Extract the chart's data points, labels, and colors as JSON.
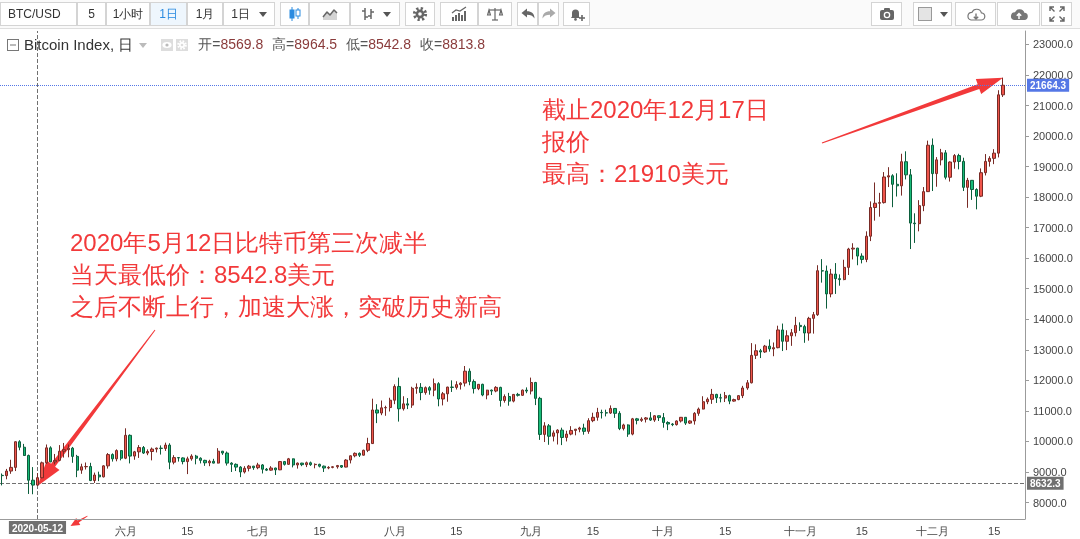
{
  "chart_data": {
    "type": "candlestick",
    "title": "Bitcoin Index, 日",
    "subtitle": "开=8569.8 高=8964.5 低=8542.8 收=8813.8",
    "x": [
      "2020-05-04",
      "2020-05-05",
      "2020-05-06",
      "2020-05-07",
      "2020-05-08",
      "2020-05-09",
      "2020-05-10",
      "2020-05-11",
      "2020-05-12",
      "2020-05-13",
      "2020-05-14",
      "2020-05-15",
      "2020-05-16",
      "2020-05-17",
      "2020-05-18",
      "2020-05-19",
      "2020-05-20",
      "2020-05-21",
      "2020-05-22",
      "2020-05-23",
      "2020-05-24",
      "2020-05-25",
      "2020-05-26",
      "2020-05-27",
      "2020-05-28",
      "2020-05-29",
      "2020-05-30",
      "2020-05-31",
      "2020-06-01",
      "2020-06-02",
      "2020-06-03",
      "2020-06-04",
      "2020-06-05",
      "2020-06-06",
      "2020-06-07",
      "2020-06-08",
      "2020-06-09",
      "2020-06-10",
      "2020-06-11",
      "2020-06-12",
      "2020-06-13",
      "2020-06-14",
      "2020-06-15",
      "2020-06-16",
      "2020-06-17",
      "2020-06-18",
      "2020-06-19",
      "2020-06-20",
      "2020-06-21",
      "2020-06-22",
      "2020-06-23",
      "2020-06-24",
      "2020-06-25",
      "2020-06-26",
      "2020-06-27",
      "2020-06-28",
      "2020-06-29",
      "2020-06-30",
      "2020-07-01",
      "2020-07-02",
      "2020-07-03",
      "2020-07-04",
      "2020-07-05",
      "2020-07-06",
      "2020-07-07",
      "2020-07-08",
      "2020-07-09",
      "2020-07-10",
      "2020-07-11",
      "2020-07-12",
      "2020-07-13",
      "2020-07-14",
      "2020-07-15",
      "2020-07-16",
      "2020-07-17",
      "2020-07-18",
      "2020-07-19",
      "2020-07-20",
      "2020-07-21",
      "2020-07-22",
      "2020-07-23",
      "2020-07-24",
      "2020-07-25",
      "2020-07-26",
      "2020-07-27",
      "2020-07-28",
      "2020-07-29",
      "2020-07-30",
      "2020-07-31",
      "2020-08-01",
      "2020-08-02",
      "2020-08-03",
      "2020-08-04",
      "2020-08-05",
      "2020-08-06",
      "2020-08-07",
      "2020-08-08",
      "2020-08-09",
      "2020-08-10",
      "2020-08-11",
      "2020-08-12",
      "2020-08-13",
      "2020-08-14",
      "2020-08-15",
      "2020-08-16",
      "2020-08-17",
      "2020-08-18",
      "2020-08-19",
      "2020-08-20",
      "2020-08-21",
      "2020-08-22",
      "2020-08-23",
      "2020-08-24",
      "2020-08-25",
      "2020-08-26",
      "2020-08-27",
      "2020-08-28",
      "2020-08-29",
      "2020-08-30",
      "2020-08-31",
      "2020-09-01",
      "2020-09-02",
      "2020-09-03",
      "2020-09-04",
      "2020-09-05",
      "2020-09-06",
      "2020-09-07",
      "2020-09-08",
      "2020-09-09",
      "2020-09-10",
      "2020-09-11",
      "2020-09-12",
      "2020-09-13",
      "2020-09-14",
      "2020-09-15",
      "2020-09-16",
      "2020-09-17",
      "2020-09-18",
      "2020-09-19",
      "2020-09-20",
      "2020-09-21",
      "2020-09-22",
      "2020-09-23",
      "2020-09-24",
      "2020-09-25",
      "2020-09-26",
      "2020-09-27",
      "2020-09-28",
      "2020-09-29",
      "2020-09-30",
      "2020-10-01",
      "2020-10-02",
      "2020-10-03",
      "2020-10-04",
      "2020-10-05",
      "2020-10-06",
      "2020-10-07",
      "2020-10-08",
      "2020-10-09",
      "2020-10-10",
      "2020-10-11",
      "2020-10-12",
      "2020-10-13",
      "2020-10-14",
      "2020-10-15",
      "2020-10-16",
      "2020-10-17",
      "2020-10-18",
      "2020-10-19",
      "2020-10-20",
      "2020-10-21",
      "2020-10-22",
      "2020-10-23",
      "2020-10-24",
      "2020-10-25",
      "2020-10-26",
      "2020-10-27",
      "2020-10-28",
      "2020-10-29",
      "2020-10-30",
      "2020-10-31",
      "2020-11-01",
      "2020-11-02",
      "2020-11-03",
      "2020-11-04",
      "2020-11-05",
      "2020-11-06",
      "2020-11-07",
      "2020-11-08",
      "2020-11-09",
      "2020-11-10",
      "2020-11-11",
      "2020-11-12",
      "2020-11-13",
      "2020-11-14",
      "2020-11-15",
      "2020-11-16",
      "2020-11-17",
      "2020-11-18",
      "2020-11-19",
      "2020-11-20",
      "2020-11-21",
      "2020-11-22",
      "2020-11-23",
      "2020-11-24",
      "2020-11-25",
      "2020-11-26",
      "2020-11-27",
      "2020-11-28",
      "2020-11-29",
      "2020-11-30",
      "2020-12-01",
      "2020-12-02",
      "2020-12-03",
      "2020-12-04",
      "2020-12-05",
      "2020-12-06",
      "2020-12-07",
      "2020-12-08",
      "2020-12-09",
      "2020-12-10",
      "2020-12-11",
      "2020-12-12",
      "2020-12-13",
      "2020-12-14",
      "2020-12-15",
      "2020-12-16",
      "2020-12-17"
    ],
    "ohlc": [
      [
        8890,
        8950,
        8560,
        8880
      ],
      [
        8880,
        9100,
        8760,
        9030
      ],
      [
        9030,
        9400,
        8940,
        9150
      ],
      [
        9150,
        10000,
        9030,
        9990
      ],
      [
        9990,
        10040,
        9710,
        9810
      ],
      [
        9810,
        9920,
        9530,
        9540
      ],
      [
        9540,
        9570,
        8280,
        8730
      ],
      [
        8730,
        9160,
        8270,
        8570
      ],
      [
        8569.8,
        8964.5,
        8542.8,
        8813.8
      ],
      [
        8810,
        9340,
        8790,
        9300
      ],
      [
        9300,
        9900,
        9260,
        9790
      ],
      [
        9790,
        9840,
        9320,
        9330
      ],
      [
        9330,
        9590,
        9250,
        9380
      ],
      [
        9380,
        9880,
        9350,
        9680
      ],
      [
        9680,
        9950,
        9470,
        9730
      ],
      [
        9730,
        9900,
        9480,
        9780
      ],
      [
        9780,
        9820,
        9300,
        9510
      ],
      [
        9510,
        9560,
        8830,
        9060
      ],
      [
        9060,
        9270,
        8940,
        9170
      ],
      [
        9170,
        9310,
        9080,
        9180
      ],
      [
        9180,
        9300,
        8700,
        8720
      ],
      [
        8720,
        8980,
        8640,
        8900
      ],
      [
        8900,
        9010,
        8700,
        8840
      ],
      [
        8840,
        9220,
        8820,
        9200
      ],
      [
        9200,
        9620,
        9110,
        9570
      ],
      [
        9570,
        9610,
        9340,
        9430
      ],
      [
        9430,
        9740,
        9350,
        9700
      ],
      [
        9700,
        9710,
        9380,
        9450
      ],
      [
        9450,
        10430,
        9420,
        10200
      ],
      [
        10200,
        10230,
        9280,
        9520
      ],
      [
        9520,
        9690,
        9400,
        9660
      ],
      [
        9660,
        9880,
        9460,
        9800
      ],
      [
        9800,
        9850,
        9590,
        9620
      ],
      [
        9620,
        9740,
        9550,
        9670
      ],
      [
        9670,
        9800,
        9380,
        9750
      ],
      [
        9750,
        9800,
        9640,
        9780
      ],
      [
        9780,
        9870,
        9570,
        9770
      ],
      [
        9770,
        9960,
        9690,
        9880
      ],
      [
        9880,
        9940,
        9090,
        9320
      ],
      [
        9320,
        9550,
        9250,
        9470
      ],
      [
        9470,
        9490,
        9340,
        9460
      ],
      [
        9460,
        9480,
        9250,
        9340
      ],
      [
        9340,
        9500,
        8930,
        9430
      ],
      [
        9430,
        9580,
        9370,
        9520
      ],
      [
        9520,
        9560,
        9250,
        9450
      ],
      [
        9450,
        9480,
        9280,
        9380
      ],
      [
        9380,
        9400,
        9200,
        9300
      ],
      [
        9300,
        9400,
        9190,
        9350
      ],
      [
        9350,
        9430,
        9280,
        9290
      ],
      [
        9290,
        9780,
        9280,
        9680
      ],
      [
        9680,
        9690,
        9560,
        9620
      ],
      [
        9620,
        9670,
        9210,
        9290
      ],
      [
        9290,
        9320,
        9000,
        9250
      ],
      [
        9250,
        9280,
        9030,
        9160
      ],
      [
        9160,
        9190,
        8830,
        9000
      ],
      [
        9000,
        9190,
        8950,
        9120
      ],
      [
        9120,
        9230,
        9020,
        9190
      ],
      [
        9190,
        9200,
        9070,
        9140
      ],
      [
        9140,
        9300,
        9090,
        9230
      ],
      [
        9230,
        9260,
        8950,
        9090
      ],
      [
        9090,
        9130,
        9030,
        9060
      ],
      [
        9060,
        9190,
        9040,
        9130
      ],
      [
        9130,
        9140,
        8900,
        9070
      ],
      [
        9070,
        9360,
        9060,
        9340
      ],
      [
        9340,
        9360,
        9210,
        9250
      ],
      [
        9250,
        9460,
        9230,
        9430
      ],
      [
        9430,
        9440,
        9150,
        9230
      ],
      [
        9230,
        9310,
        9110,
        9290
      ],
      [
        9290,
        9300,
        9190,
        9240
      ],
      [
        9240,
        9340,
        9160,
        9300
      ],
      [
        9300,
        9340,
        9200,
        9240
      ],
      [
        9240,
        9280,
        9120,
        9250
      ],
      [
        9250,
        9270,
        9150,
        9190
      ],
      [
        9190,
        9210,
        9000,
        9130
      ],
      [
        9130,
        9190,
        9090,
        9150
      ],
      [
        9150,
        9190,
        9120,
        9170
      ],
      [
        9170,
        9230,
        9110,
        9210
      ],
      [
        9210,
        9220,
        9130,
        9160
      ],
      [
        9160,
        9420,
        9150,
        9390
      ],
      [
        9390,
        9540,
        9280,
        9530
      ],
      [
        9530,
        9640,
        9480,
        9610
      ],
      [
        9610,
        9640,
        9490,
        9550
      ],
      [
        9550,
        9730,
        9540,
        9710
      ],
      [
        9710,
        10120,
        9650,
        9930
      ],
      [
        9930,
        11400,
        9920,
        11030
      ],
      [
        11030,
        11220,
        10600,
        10930
      ],
      [
        10930,
        11340,
        10860,
        11100
      ],
      [
        11100,
        11170,
        10840,
        11110
      ],
      [
        11110,
        11430,
        10980,
        11350
      ],
      [
        11350,
        11870,
        11220,
        11800
      ],
      [
        11800,
        12090,
        10650,
        11070
      ],
      [
        11070,
        11480,
        11010,
        11230
      ],
      [
        11230,
        11420,
        11060,
        11190
      ],
      [
        11190,
        11790,
        11100,
        11740
      ],
      [
        11740,
        11900,
        11560,
        11770
      ],
      [
        11770,
        11910,
        11350,
        11600
      ],
      [
        11600,
        11800,
        11530,
        11760
      ],
      [
        11760,
        11810,
        11530,
        11680
      ],
      [
        11680,
        12060,
        11480,
        11890
      ],
      [
        11890,
        11940,
        11150,
        11390
      ],
      [
        11390,
        11620,
        11180,
        11560
      ],
      [
        11560,
        11790,
        11300,
        11780
      ],
      [
        11780,
        12000,
        11620,
        11770
      ],
      [
        11770,
        11970,
        11700,
        11860
      ],
      [
        11860,
        11940,
        11700,
        11910
      ],
      [
        11910,
        12470,
        11800,
        12300
      ],
      [
        12300,
        12390,
        11840,
        11960
      ],
      [
        11960,
        12030,
        11570,
        11730
      ],
      [
        11730,
        11880,
        11680,
        11870
      ],
      [
        11870,
        11890,
        11480,
        11520
      ],
      [
        11520,
        11690,
        11380,
        11680
      ],
      [
        11680,
        11700,
        11520,
        11650
      ],
      [
        11650,
        11810,
        11610,
        11770
      ],
      [
        11770,
        11790,
        11140,
        11340
      ],
      [
        11340,
        11540,
        11270,
        11470
      ],
      [
        11470,
        11590,
        11170,
        11320
      ],
      [
        11320,
        11550,
        11280,
        11540
      ],
      [
        11540,
        11590,
        11470,
        11510
      ],
      [
        11510,
        11700,
        11490,
        11680
      ],
      [
        11680,
        11770,
        11580,
        11650
      ],
      [
        11650,
        12090,
        11540,
        11930
      ],
      [
        11930,
        11950,
        11190,
        11410
      ],
      [
        11410,
        11460,
        10050,
        10230
      ],
      [
        10230,
        10630,
        9980,
        10510
      ],
      [
        10510,
        10570,
        9890,
        10170
      ],
      [
        10170,
        10360,
        10000,
        10280
      ],
      [
        10280,
        10400,
        9900,
        10370
      ],
      [
        10370,
        10450,
        9880,
        10130
      ],
      [
        10130,
        10350,
        10000,
        10240
      ],
      [
        10240,
        10500,
        10200,
        10360
      ],
      [
        10360,
        10410,
        10200,
        10400
      ],
      [
        10400,
        10480,
        10300,
        10440
      ],
      [
        10440,
        10580,
        10220,
        10330
      ],
      [
        10330,
        10760,
        10250,
        10680
      ],
      [
        10680,
        10940,
        10630,
        10790
      ],
      [
        10790,
        11100,
        10680,
        10950
      ],
      [
        10950,
        11040,
        10750,
        10940
      ],
      [
        10940,
        11040,
        10820,
        10930
      ],
      [
        10930,
        11180,
        10900,
        11080
      ],
      [
        11080,
        11090,
        10770,
        10920
      ],
      [
        10920,
        10990,
        10370,
        10420
      ],
      [
        10420,
        10580,
        10360,
        10540
      ],
      [
        10540,
        10560,
        10150,
        10240
      ],
      [
        10240,
        10770,
        10200,
        10740
      ],
      [
        10740,
        10770,
        10560,
        10690
      ],
      [
        10690,
        10790,
        10640,
        10730
      ],
      [
        10730,
        10800,
        10620,
        10770
      ],
      [
        10770,
        10960,
        10670,
        10700
      ],
      [
        10700,
        10860,
        10640,
        10840
      ],
      [
        10840,
        10850,
        10670,
        10780
      ],
      [
        10780,
        10930,
        10450,
        10620
      ],
      [
        10620,
        10660,
        10370,
        10570
      ],
      [
        10570,
        10600,
        10500,
        10550
      ],
      [
        10550,
        10690,
        10520,
        10670
      ],
      [
        10670,
        10800,
        10620,
        10790
      ],
      [
        10790,
        10800,
        10540,
        10600
      ],
      [
        10600,
        10690,
        10570,
        10670
      ],
      [
        10670,
        10960,
        10550,
        10920
      ],
      [
        10920,
        11110,
        10840,
        11060
      ],
      [
        11060,
        11480,
        11050,
        11300
      ],
      [
        11300,
        11440,
        11220,
        11380
      ],
      [
        11380,
        11720,
        11230,
        11540
      ],
      [
        11540,
        11560,
        11260,
        11430
      ],
      [
        11430,
        11560,
        11280,
        11420
      ],
      [
        11420,
        11620,
        11290,
        11500
      ],
      [
        11500,
        11530,
        11220,
        11320
      ],
      [
        11320,
        11400,
        11300,
        11370
      ],
      [
        11370,
        11510,
        11350,
        11500
      ],
      [
        11500,
        11820,
        11420,
        11750
      ],
      [
        11750,
        12010,
        11690,
        11920
      ],
      [
        11920,
        13220,
        11900,
        12820
      ],
      [
        12820,
        13180,
        12700,
        12970
      ],
      [
        12970,
        13030,
        12730,
        12930
      ],
      [
        12930,
        13160,
        12900,
        13120
      ],
      [
        13120,
        13340,
        12940,
        13030
      ],
      [
        13030,
        13240,
        12790,
        13070
      ],
      [
        13070,
        13790,
        13050,
        13650
      ],
      [
        13650,
        13860,
        12960,
        13280
      ],
      [
        13280,
        13640,
        12990,
        13460
      ],
      [
        13460,
        13680,
        13130,
        13560
      ],
      [
        13560,
        14080,
        13440,
        13800
      ],
      [
        13800,
        13900,
        13620,
        13760
      ],
      [
        13760,
        13820,
        13230,
        13550
      ],
      [
        13550,
        14080,
        13300,
        14030
      ],
      [
        14030,
        14240,
        13530,
        14150
      ],
      [
        14150,
        15770,
        14110,
        15590
      ],
      [
        15590,
        15970,
        15200,
        15580
      ],
      [
        15580,
        15760,
        14350,
        14830
      ],
      [
        14830,
        15650,
        14720,
        15480
      ],
      [
        15480,
        15840,
        14830,
        15330
      ],
      [
        15330,
        15470,
        15100,
        15300
      ],
      [
        15300,
        15950,
        15280,
        15700
      ],
      [
        15700,
        16340,
        15450,
        16300
      ],
      [
        16300,
        16490,
        15960,
        16330
      ],
      [
        16330,
        16340,
        15770,
        16070
      ],
      [
        16070,
        16160,
        15830,
        15960
      ],
      [
        15960,
        16880,
        15870,
        16720
      ],
      [
        16720,
        17860,
        16560,
        17660
      ],
      [
        17660,
        18480,
        17230,
        17800
      ],
      [
        17800,
        18140,
        17360,
        17820
      ],
      [
        17820,
        18820,
        17790,
        18660
      ],
      [
        18660,
        18980,
        18330,
        18700
      ],
      [
        18700,
        18750,
        17670,
        18420
      ],
      [
        18420,
        18780,
        18020,
        18370
      ],
      [
        18370,
        19420,
        18050,
        19160
      ],
      [
        19160,
        19500,
        18580,
        18730
      ],
      [
        18730,
        18920,
        16300,
        17150
      ],
      [
        17150,
        17470,
        16500,
        17130
      ],
      [
        17130,
        17900,
        16880,
        17720
      ],
      [
        17720,
        18330,
        17540,
        18180
      ],
      [
        18180,
        19850,
        18170,
        19700
      ],
      [
        19700,
        19920,
        18200,
        18770
      ],
      [
        18770,
        19310,
        18340,
        19220
      ],
      [
        19220,
        19580,
        19040,
        19450
      ],
      [
        19450,
        19540,
        18580,
        18650
      ],
      [
        18650,
        19170,
        18510,
        19150
      ],
      [
        19150,
        19410,
        18930,
        19360
      ],
      [
        19360,
        19420,
        18910,
        19170
      ],
      [
        19170,
        19290,
        18200,
        18320
      ],
      [
        18320,
        18630,
        17650,
        18550
      ],
      [
        18550,
        18560,
        17910,
        18250
      ],
      [
        18250,
        18290,
        17600,
        18030
      ],
      [
        18030,
        18940,
        18000,
        18800
      ],
      [
        18800,
        19410,
        18710,
        19170
      ],
      [
        19170,
        19340,
        19000,
        19270
      ],
      [
        19270,
        19570,
        19080,
        19440
      ],
      [
        19440,
        21500,
        19300,
        21350
      ],
      [
        21350,
        21910,
        21280,
        21664.3
      ]
    ],
    "colors": [
      "#17bb78",
      "#f0554b",
      "#f0554b",
      "#f0554b",
      "#17bb78",
      "#17bb78",
      "#17bb78",
      "#17bb78",
      "#f0554b",
      "#f0554b",
      "#f0554b",
      "#17bb78",
      "#f0554b",
      "#f0554b",
      "#f0554b",
      "#f0554b",
      "#17bb78",
      "#17bb78",
      "#f0554b",
      "#f0554b",
      "#17bb78",
      "#f0554b",
      "#17bb78",
      "#f0554b",
      "#f0554b",
      "#17bb78",
      "#f0554b",
      "#17bb78",
      "#f0554b",
      "#17bb78",
      "#f0554b",
      "#f0554b",
      "#17bb78",
      "#f0554b",
      "#f0554b",
      "#f0554b",
      "#17bb78",
      "#f0554b",
      "#17bb78",
      "#f0554b",
      "#17bb78",
      "#17bb78",
      "#f0554b",
      "#f0554b",
      "#17bb78",
      "#17bb78",
      "#17bb78",
      "#f0554b",
      "#17bb78",
      "#f0554b",
      "#17bb78",
      "#17bb78",
      "#17bb78",
      "#17bb78",
      "#17bb78",
      "#f0554b",
      "#f0554b",
      "#17bb78",
      "#f0554b",
      "#17bb78",
      "#17bb78",
      "#f0554b",
      "#17bb78",
      "#f0554b",
      "#17bb78",
      "#f0554b",
      "#17bb78",
      "#f0554b",
      "#17bb78",
      "#f0554b",
      "#17bb78",
      "#f0554b",
      "#17bb78",
      "#17bb78",
      "#f0554b",
      "#f0554b",
      "#f0554b",
      "#17bb78",
      "#f0554b",
      "#f0554b",
      "#f0554b",
      "#17bb78",
      "#f0554b",
      "#f0554b",
      "#f0554b",
      "#17bb78",
      "#f0554b",
      "#f0554b",
      "#f0554b",
      "#f0554b",
      "#17bb78",
      "#f0554b",
      "#17bb78",
      "#f0554b",
      "#f0554b",
      "#17bb78",
      "#f0554b",
      "#17bb78",
      "#f0554b",
      "#17bb78",
      "#f0554b",
      "#f0554b",
      "#17bb78",
      "#f0554b",
      "#f0554b",
      "#f0554b",
      "#17bb78",
      "#17bb78",
      "#f0554b",
      "#17bb78",
      "#f0554b",
      "#17bb78",
      "#f0554b",
      "#17bb78",
      "#f0554b",
      "#17bb78",
      "#f0554b",
      "#17bb78",
      "#f0554b",
      "#17bb78",
      "#f0554b",
      "#17bb78",
      "#17bb78",
      "#f0554b",
      "#17bb78",
      "#f0554b",
      "#f0554b",
      "#17bb78",
      "#f0554b",
      "#f0554b",
      "#f0554b",
      "#f0554b",
      "#17bb78",
      "#f0554b",
      "#f0554b",
      "#f0554b",
      "#17bb78",
      "#17bb78",
      "#f0554b",
      "#17bb78",
      "#17bb78",
      "#f0554b",
      "#17bb78",
      "#f0554b",
      "#17bb78",
      "#f0554b",
      "#f0554b",
      "#17bb78",
      "#f0554b",
      "#17bb78",
      "#17bb78",
      "#17bb78",
      "#17bb78",
      "#f0554b",
      "#f0554b",
      "#17bb78",
      "#f0554b",
      "#f0554b",
      "#f0554b",
      "#f0554b",
      "#f0554b",
      "#f0554b",
      "#17bb78",
      "#17bb78",
      "#f0554b",
      "#17bb78",
      "#f0554b",
      "#f0554b",
      "#f0554b",
      "#f0554b",
      "#f0554b",
      "#f0554b",
      "#17bb78",
      "#f0554b",
      "#17bb78",
      "#f0554b",
      "#f0554b",
      "#17bb78",
      "#f0554b",
      "#f0554b",
      "#f0554b",
      "#17bb78",
      "#17bb78",
      "#f0554b",
      "#f0554b",
      "#f0554b",
      "#17bb78",
      "#17bb78",
      "#f0554b",
      "#17bb78",
      "#17bb78",
      "#f0554b",
      "#f0554b",
      "#f0554b",
      "#17bb78",
      "#17bb78",
      "#f0554b",
      "#f0554b",
      "#f0554b",
      "#f0554b",
      "#f0554b",
      "#f0554b",
      "#17bb78",
      "#17bb78",
      "#f0554b",
      "#17bb78",
      "#17bb78",
      "#17bb78",
      "#f0554b",
      "#f0554b",
      "#f0554b",
      "#17bb78",
      "#f0554b",
      "#f0554b",
      "#17bb78",
      "#f0554b",
      "#f0554b",
      "#17bb78",
      "#17bb78",
      "#f0554b",
      "#17bb78",
      "#17bb78",
      "#f0554b",
      "#f0554b",
      "#f0554b",
      "#f0554b",
      "#f0554b",
      "#f0554b"
    ],
    "xlim": [
      "2020-05-03T12:00",
      "2020-12-22"
    ],
    "xticks": [
      {
        "value": "2020-06-01",
        "label": "六月"
      },
      {
        "value": "2020-06-15",
        "label": "15"
      },
      {
        "value": "2020-07-01",
        "label": "七月"
      },
      {
        "value": "2020-07-15",
        "label": "15"
      },
      {
        "value": "2020-08-01",
        "label": "八月"
      },
      {
        "value": "2020-08-15",
        "label": "15"
      },
      {
        "value": "2020-09-01",
        "label": "九月"
      },
      {
        "value": "2020-09-15",
        "label": "15"
      },
      {
        "value": "2020-10-01",
        "label": "十月"
      },
      {
        "value": "2020-10-15",
        "label": "15"
      },
      {
        "value": "2020-11-01",
        "label": "十一月"
      },
      {
        "value": "2020-11-15",
        "label": "15"
      },
      {
        "value": "2020-12-01",
        "label": "十二月"
      },
      {
        "value": "2020-12-15",
        "label": "15"
      }
    ],
    "ylim": [
      7460,
      23440
    ],
    "yticks": [
      {
        "value": 8000,
        "label": "8000.0"
      },
      {
        "value": 9000,
        "label": "9000.0"
      },
      {
        "value": 10000,
        "label": "10000.0"
      },
      {
        "value": 11000,
        "label": "11000.0"
      },
      {
        "value": 12000,
        "label": "12000.0"
      },
      {
        "value": 13000,
        "label": "13000.0"
      },
      {
        "value": 14000,
        "label": "14000.0"
      },
      {
        "value": 15000,
        "label": "15000.0"
      },
      {
        "value": 16000,
        "label": "16000.0"
      },
      {
        "value": 17000,
        "label": "17000.0"
      },
      {
        "value": 18000,
        "label": "18000.0"
      },
      {
        "value": 19000,
        "label": "19000.0"
      },
      {
        "value": 20000,
        "label": "20000.0"
      },
      {
        "value": 21000,
        "label": "21000.0"
      },
      {
        "value": 22000,
        "label": "22000.0"
      },
      {
        "value": 23000,
        "label": "23000.0"
      }
    ],
    "grid": false,
    "ref_lines": [
      {
        "axis": "y",
        "value": 21664.3,
        "label": "21664.3",
        "color": "#5577e6",
        "line_style": "dotted"
      },
      {
        "axis": "x",
        "value": "2020-05-12",
        "label": "2020-05-12",
        "color": "#707070",
        "line_style": "dashed"
      },
      {
        "axis": "y",
        "value": 8632.3,
        "label": "8632.3",
        "color": "#707070",
        "line_style": "dashed"
      }
    ],
    "annotations": [
      "BTC/USD",
      "5",
      "1小时",
      "1日",
      "1月",
      "1日",
      "2020年5月12日比特币第三次减半",
      "当天最低价：8542.8美元",
      "之后不断上行，加速大涨，突破历史新高",
      "截止2020年12月17日",
      "报价",
      "最高：21910美元"
    ]
  }
}
